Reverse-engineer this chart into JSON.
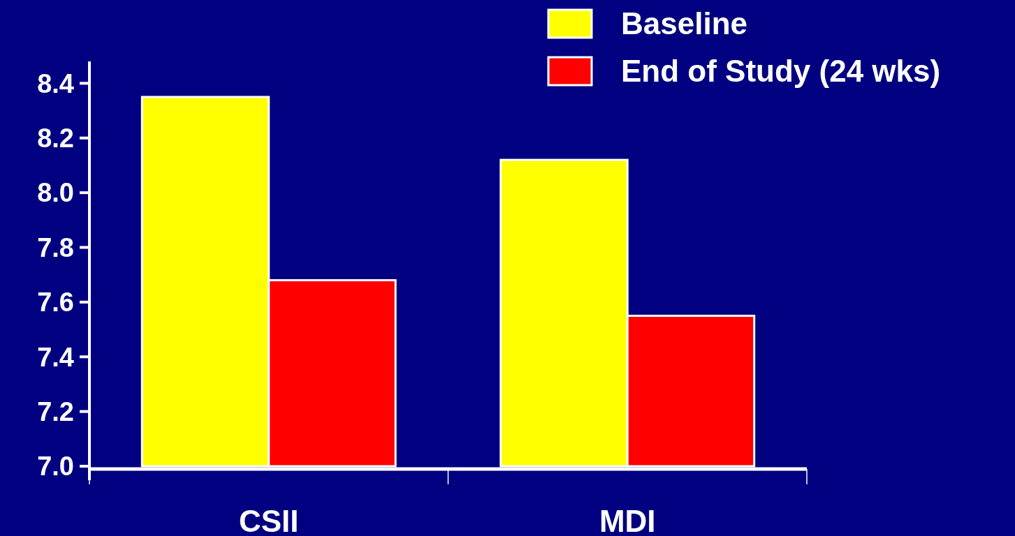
{
  "chart_data": {
    "type": "bar",
    "categories": [
      "CSII",
      "MDI"
    ],
    "series": [
      {
        "name": "Baseline",
        "color": "#ffff00",
        "values": [
          8.35,
          8.12
        ]
      },
      {
        "name": "End of Study (24 wks)",
        "color": "#ff0000",
        "values": [
          7.68,
          7.55
        ]
      }
    ],
    "ylim": [
      7.0,
      8.48
    ],
    "yticks": [
      {
        "value": 7.0,
        "label": "7.0"
      },
      {
        "value": 7.2,
        "label": "7.2"
      },
      {
        "value": 7.4,
        "label": "7.4"
      },
      {
        "value": 7.6,
        "label": "7.6"
      },
      {
        "value": 7.8,
        "label": "7.8"
      },
      {
        "value": 8.0,
        "label": "8.0"
      },
      {
        "value": 8.2,
        "label": "8.2"
      },
      {
        "value": 8.4,
        "label": "8.4"
      }
    ],
    "grid": false,
    "legend": "top right"
  }
}
